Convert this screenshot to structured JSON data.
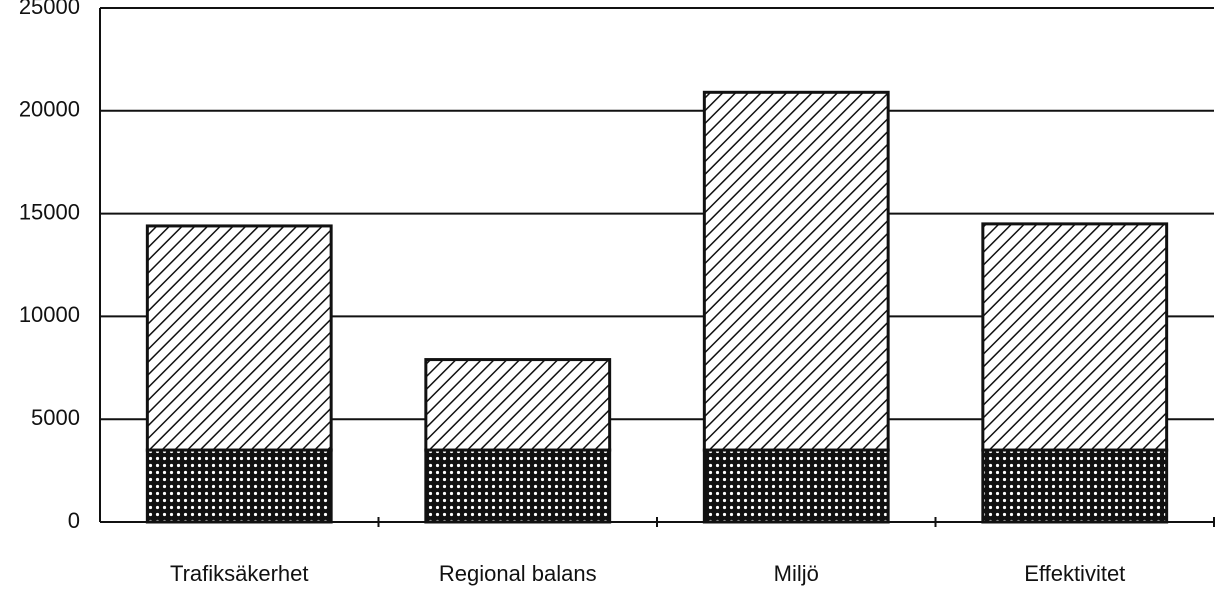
{
  "chart_data": {
    "type": "stacked_bar",
    "categories": [
      "Trafiksäkerhet",
      "Regional balans",
      "Miljö",
      "Effektivitet"
    ],
    "series": [
      {
        "color": "#111111",
        "pattern": "dots",
        "values": [
          3500,
          3500,
          3500,
          3500
        ]
      },
      {
        "color": "#111111",
        "pattern": "diagonal",
        "values": [
          10900,
          4400,
          17400,
          11000
        ]
      }
    ],
    "ylim": [
      0,
      25000
    ],
    "yticks": [
      0,
      5000,
      10000,
      15000,
      20000,
      25000
    ],
    "grid": true
  }
}
